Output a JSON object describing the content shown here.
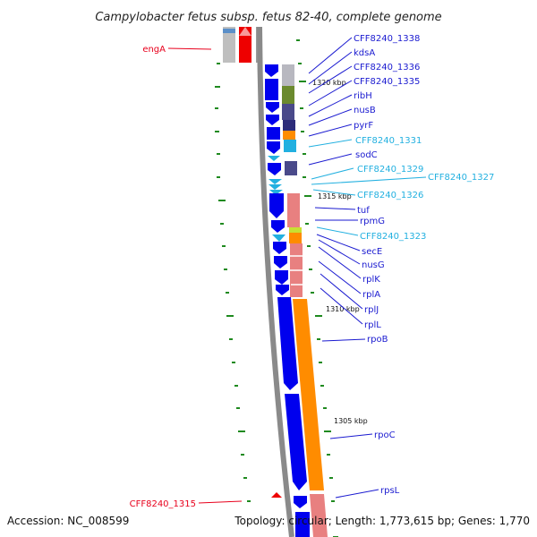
{
  "title": "Campylobacter fetus subsp. fetus 82-40, complete genome",
  "footer": {
    "accession": "Accession: NC_008599",
    "summary": "Topology: circular; Length: 1,773,615 bp; Genes: 1,770"
  },
  "scale_labels": [
    "1320 kbp",
    "1315 kbp",
    "1310 kbp",
    "1305 kbp"
  ],
  "gene_labels": [
    {
      "text": "engA",
      "color": "#e8001c"
    },
    {
      "text": "CFF8240_1338",
      "color": "#1a1ad0"
    },
    {
      "text": "kdsA",
      "color": "#1a1ad0"
    },
    {
      "text": "CFF8240_1336",
      "color": "#1a1ad0"
    },
    {
      "text": "CFF8240_1335",
      "color": "#1a1ad0"
    },
    {
      "text": "ribH",
      "color": "#1a1ad0"
    },
    {
      "text": "nusB",
      "color": "#1a1ad0"
    },
    {
      "text": "pyrF",
      "color": "#1a1ad0"
    },
    {
      "text": "CFF8240_1331",
      "color": "#22b0e0"
    },
    {
      "text": "sodC",
      "color": "#1a1ad0"
    },
    {
      "text": "CFF8240_1329",
      "color": "#22b0e0"
    },
    {
      "text": "CFF8240_1327",
      "color": "#22b0e0"
    },
    {
      "text": "CFF8240_1326",
      "color": "#22b0e0"
    },
    {
      "text": "tuf",
      "color": "#1a1ad0"
    },
    {
      "text": "rpmG",
      "color": "#1a1ad0"
    },
    {
      "text": "CFF8240_1323",
      "color": "#22b0e0"
    },
    {
      "text": "secE",
      "color": "#1a1ad0"
    },
    {
      "text": "nusG",
      "color": "#1a1ad0"
    },
    {
      "text": "rplK",
      "color": "#1a1ad0"
    },
    {
      "text": "rplA",
      "color": "#1a1ad0"
    },
    {
      "text": "rplJ",
      "color": "#1a1ad0"
    },
    {
      "text": "rplL",
      "color": "#1a1ad0"
    },
    {
      "text": "rpoB",
      "color": "#1a1ad0"
    },
    {
      "text": "rpoC",
      "color": "#1a1ad0"
    },
    {
      "text": "rpsL",
      "color": "#1a1ad0"
    },
    {
      "text": "CFF8240_1315",
      "color": "#e8001c"
    }
  ],
  "colors": {
    "forward_gene": "#0000ee",
    "reverse_gene": "#e88080",
    "backbone": "#888888",
    "rpo_genes": "#ff8c00",
    "tick": "#1f8a1f",
    "red_marker": "#ee0000"
  }
}
